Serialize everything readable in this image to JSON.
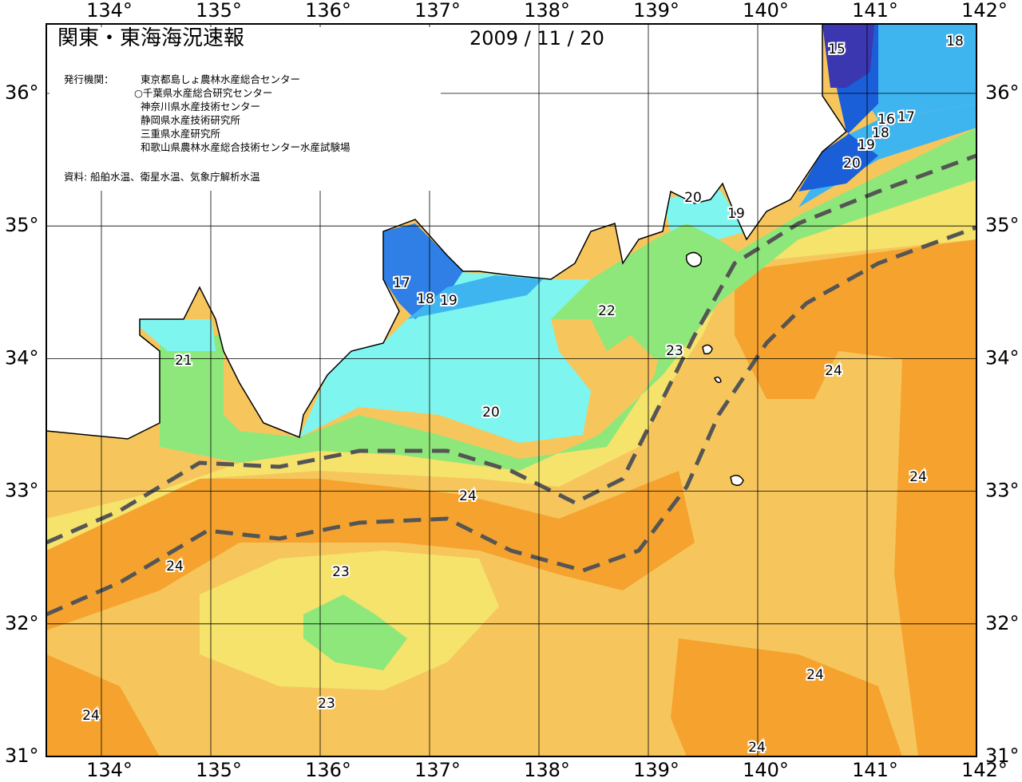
{
  "header": {
    "title": "関東・東海海況速報",
    "date": "2009 / 11 / 20"
  },
  "issuers": {
    "label": "発行機関：",
    "names": [
      "東京都島しょ農林水産総合センター",
      "○千葉県水産総合研究センター",
      "神奈川県水産技術センター",
      "静岡県水産技術研究所",
      "三重県水産研究所",
      "和歌山県農林水産総合技術センター水産試験場"
    ]
  },
  "source": "資料: 船舶水温、衛星水温、気象庁解析水温",
  "axes": {
    "longitudes": [
      {
        "value": 134,
        "label": "134°"
      },
      {
        "value": 135,
        "label": "135°"
      },
      {
        "value": 136,
        "label": "136°"
      },
      {
        "value": 137,
        "label": "137°"
      },
      {
        "value": 138,
        "label": "138°"
      },
      {
        "value": 139,
        "label": "139°"
      },
      {
        "value": 140,
        "label": "140°"
      },
      {
        "value": 141,
        "label": "141°"
      },
      {
        "value": 142,
        "label": "142°"
      }
    ],
    "latitudes": [
      {
        "value": 36,
        "label": "36°"
      },
      {
        "value": 35,
        "label": "35°"
      },
      {
        "value": 34,
        "label": "34°"
      },
      {
        "value": 33,
        "label": "33°"
      },
      {
        "value": 32,
        "label": "32°"
      },
      {
        "value": 31,
        "label": "31°"
      }
    ]
  },
  "contour_labels": [
    "15",
    "18",
    "16",
    "17",
    "18",
    "19",
    "20",
    "20",
    "19",
    "17",
    "18",
    "19",
    "21",
    "22",
    "23",
    "24",
    "20",
    "24",
    "24",
    "24",
    "23",
    "23",
    "24",
    "24",
    "24"
  ]
}
